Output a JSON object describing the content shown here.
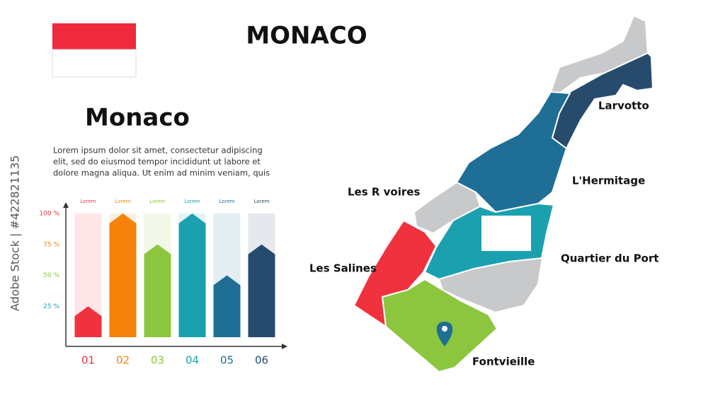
{
  "header": {
    "title": "MONACO"
  },
  "info": {
    "heading": "Monaco",
    "body": [
      "Lorem ipsum dolor sit amet, consectetur adipiscing",
      "elit, sed do eiusmod tempor incididunt ut labore et",
      "dolore magna aliqua. Ut enim ad minim veniam, quis"
    ]
  },
  "chart_data": {
    "type": "bar",
    "categories": [
      "01",
      "02",
      "03",
      "04",
      "05",
      "06"
    ],
    "top_labels": [
      "Lorem",
      "Lorem",
      "Lorem",
      "Lorem",
      "Lorem",
      "Lorem"
    ],
    "values": [
      25,
      100,
      75,
      100,
      50,
      75
    ],
    "colors": [
      "#f0323f",
      "#f5820a",
      "#8cc63e",
      "#1ba0b0",
      "#1f6e96",
      "#274b6d"
    ],
    "ylim": [
      0,
      100
    ],
    "yticks": [
      {
        "value": 25,
        "label": "25 %"
      },
      {
        "value": 50,
        "label": "50 %"
      },
      {
        "value": 75,
        "label": "75 %"
      },
      {
        "value": 100,
        "label": "100 %"
      }
    ],
    "ytick_colors": [
      "#1ba0b0",
      "#8cc63e",
      "#f5820a",
      "#f0323f"
    ]
  },
  "map": {
    "labels": [
      "Larvotto",
      "L'Hermitage",
      "Les R voires",
      "Quartier du Port",
      "Les Salines",
      "Fontvieille"
    ]
  },
  "watermark": "Adobe Stock | #422821135"
}
